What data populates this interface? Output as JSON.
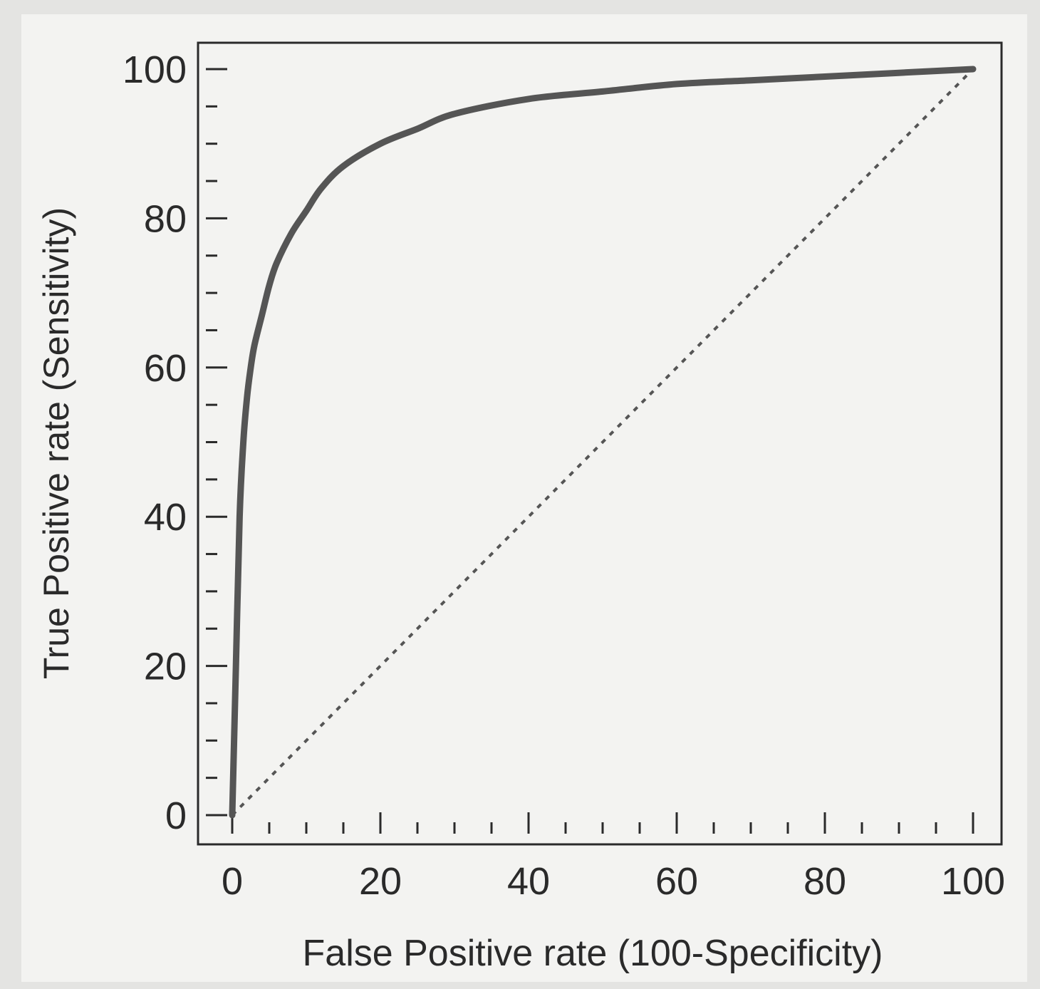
{
  "chart_data": {
    "type": "line",
    "title": "",
    "xlabel": "False Positive rate (100-Specificity)",
    "ylabel": "True Positive rate (Sensitivity)",
    "xlim": [
      0,
      100
    ],
    "ylim": [
      0,
      100
    ],
    "x_ticks": [
      "0",
      "20",
      "40",
      "60",
      "80",
      "100"
    ],
    "y_ticks": [
      "0",
      "20",
      "40",
      "60",
      "80",
      "100"
    ],
    "grid": false,
    "legend": "none",
    "series": [
      {
        "style": "solid",
        "color": "#555555",
        "x": [
          0,
          0.5,
          1,
          1.5,
          2,
          2.5,
          3,
          4,
          5,
          6,
          8,
          10,
          12,
          15,
          20,
          25,
          30,
          40,
          50,
          60,
          70,
          80,
          90,
          100
        ],
        "y": [
          0,
          20,
          40,
          50,
          56,
          60,
          63,
          67,
          71,
          74,
          78,
          81,
          84,
          87,
          90,
          92,
          94,
          96,
          97,
          98,
          98.5,
          99,
          99.5,
          100
        ]
      },
      {
        "style": "dashed",
        "color": "#555555",
        "x": [
          0,
          100
        ],
        "y": [
          0,
          100
        ]
      }
    ]
  }
}
